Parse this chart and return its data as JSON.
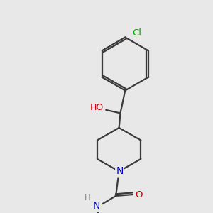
{
  "bg_color": "#e8e8e8",
  "bond_color": "#3a3a3a",
  "bond_width": 1.6,
  "atom_colors": {
    "N": "#0000cc",
    "O": "#cc0000",
    "Cl": "#00aa00"
  },
  "font_size": 8.5
}
